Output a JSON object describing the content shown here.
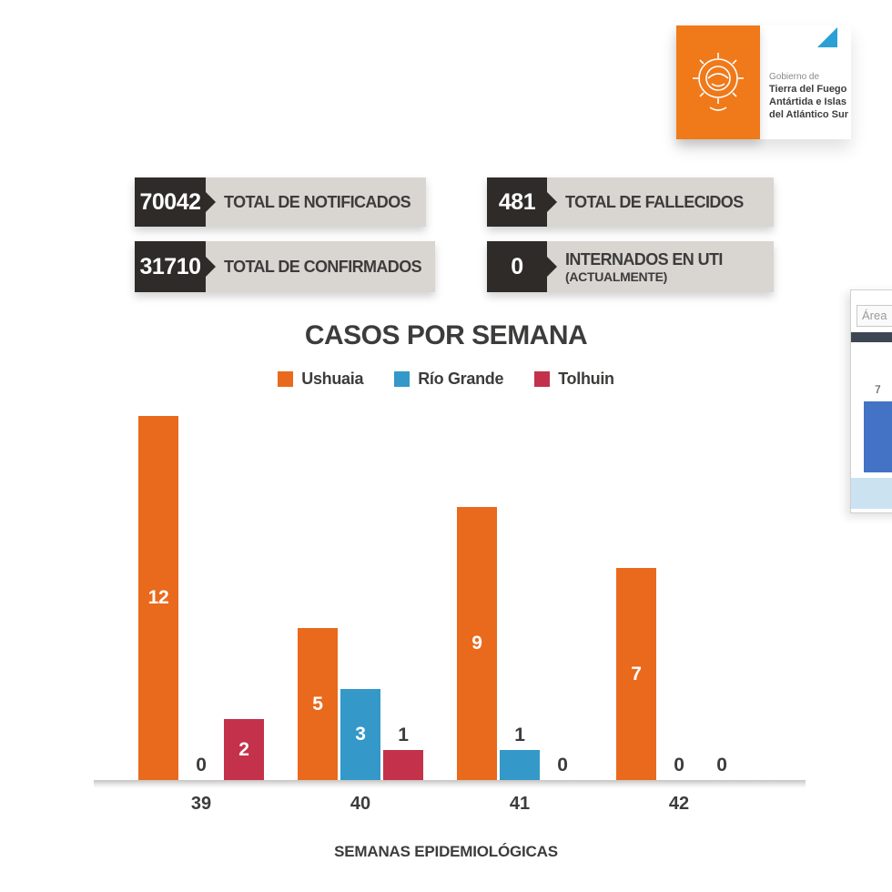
{
  "logo": {
    "prefix": "Gobierno de",
    "lines": [
      "Tierra del Fuego",
      "Antártida e Islas",
      "del Atlántico Sur"
    ],
    "brand_color": "#F0791A",
    "corner_triangle_color": "#2B9FD6",
    "emblem_icon": "provincial-crest-icon"
  },
  "stats": [
    {
      "value": "70042",
      "label": "TOTAL DE NOTIFICADOS"
    },
    {
      "value": "481",
      "label": "TOTAL DE FALLECIDOS"
    },
    {
      "value": "31710",
      "label": "TOTAL DE CONFIRMADOS"
    },
    {
      "value": "0",
      "label": "INTERNADOS EN UTI",
      "sublabel": "(ACTUALMENTE)"
    }
  ],
  "chart_data": {
    "type": "bar",
    "title": "CASOS POR SEMANA",
    "xlabel": "SEMANAS EPIDEMIOLÓGICAS",
    "categories": [
      "39",
      "40",
      "41",
      "42"
    ],
    "series": [
      {
        "name": "Ushuaia",
        "color": "#E96A1C",
        "values": [
          12,
          5,
          9,
          7
        ]
      },
      {
        "name": "Río Grande",
        "color": "#3498C8",
        "values": [
          0,
          3,
          1,
          0
        ]
      },
      {
        "name": "Tolhuin",
        "color": "#C4314B",
        "values": [
          2,
          1,
          0,
          0
        ]
      }
    ],
    "ylim": [
      0,
      12
    ],
    "grid": false,
    "legend_position": "top",
    "value_labels": true
  },
  "side_panel": {
    "field_text": "Área",
    "bar_value": "7",
    "bar_color": "#4472C4"
  },
  "colors": {
    "stat_number_bg": "#2E2B29",
    "stat_label_bg": "#D9D6D2",
    "text_dark": "#3C3C3B",
    "axis_strip": "#C6C4C2"
  }
}
